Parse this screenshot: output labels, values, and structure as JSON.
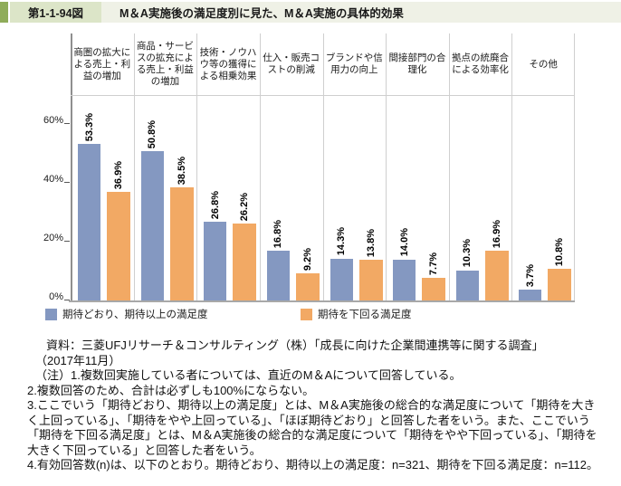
{
  "header": {
    "figure_label": "第1-1-94図",
    "title": "М＆А実施後の満足度別に見た、М＆А実施の具体的効果"
  },
  "colors": {
    "accent_block": "#8fac5a",
    "label_bg": "#dce5c8",
    "title_bg": "#eff1e6",
    "series_expected": "#8498c1",
    "series_below": "#f2a964"
  },
  "chart_data": {
    "type": "bar",
    "title": "М＆А実施後の満足度別に見た、М＆А実施の具体的効果",
    "categories": [
      "商圏の拡大による売上・利益の増加",
      "商品・サービスの拡充による売上・利益の増加",
      "技術・ノウハウ等の獲得による相乗効果",
      "仕入・販売コストの削減",
      "ブランドや信用力の向上",
      "間接部門の合理化",
      "拠点の統廃合による効率化",
      "その他"
    ],
    "series": [
      {
        "name": "期待どおり、期待以上の満足度",
        "color": "#8498c1",
        "values": [
          53.3,
          50.8,
          26.8,
          16.8,
          14.3,
          14.0,
          10.3,
          3.7
        ]
      },
      {
        "name": "期待を下回る満足度",
        "color": "#f2a964",
        "values": [
          36.9,
          38.5,
          26.2,
          9.2,
          13.8,
          7.7,
          16.9,
          10.8
        ]
      }
    ],
    "value_suffix": "%",
    "ylabel": "",
    "xlabel": "",
    "yticks": [
      0,
      20,
      40,
      60
    ],
    "ytick_labels": [
      "0%",
      "20%",
      "40%",
      "60%"
    ],
    "ylim": [
      0,
      68
    ],
    "grid": "vertical category separators only",
    "legend_position": "bottom"
  },
  "footer": {
    "source_line1": "資料：三菱UFJリサーチ＆コンサルティング（株）「成長に向けた企業間連携等に関する調査」",
    "source_line2": "（2017年11月）",
    "note1": "（注）1.複数回実施している者については、直近のМ＆Аについて回答している。",
    "note2": "2.複数回答のため、合計は必ずしも100%にならない。",
    "note3": "3.ここでいう「期待どおり、期待以上の満足度」とは、М＆А実施後の総合的な満足度について「期待を大きく上回っている」、「期待をやや上回っている」、「ほぼ期待どおり」と回答した者をいう。また、ここでいう「期待を下回る満足度」とは、М＆А実施後の総合的な満足度について「期待をやや下回っている」、「期待を大きく下回っている」と回答した者をいう。",
    "note4": "4.有効回答数(n)は、以下のとおり。期待どおり、期待以上の満足度：n=321、期待を下回る満足度：n=112。"
  }
}
